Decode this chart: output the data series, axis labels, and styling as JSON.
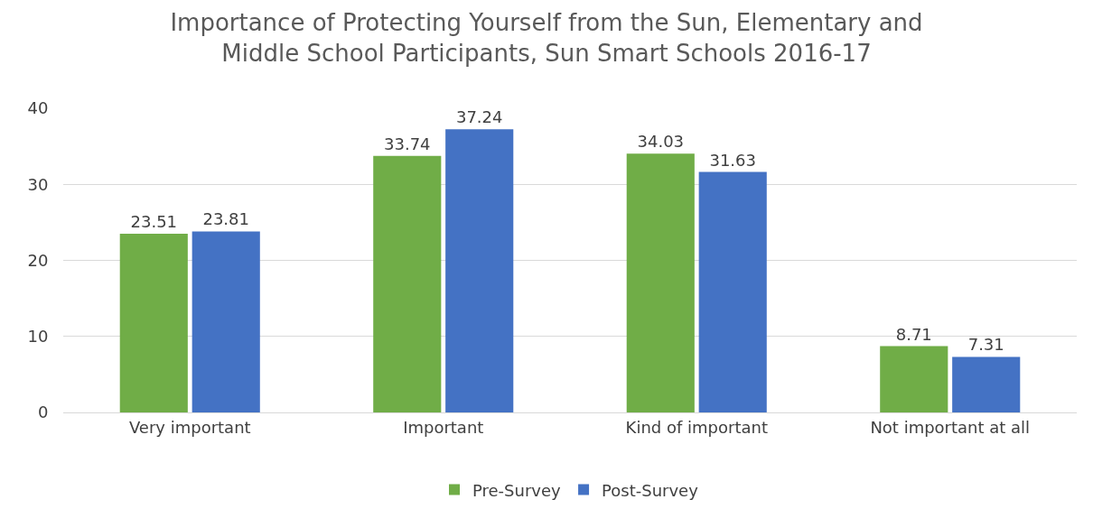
{
  "chart_data": {
    "type": "bar",
    "title": "Importance of Protecting Yourself from the Sun, Elementary and Middle School Participants, Sun Smart Schools 2016-17",
    "categories": [
      "Very important",
      "Important",
      "Kind of important",
      "Not important at all"
    ],
    "series": [
      {
        "name": "Pre-Survey",
        "color": "#70ad47",
        "values": [
          23.51,
          33.74,
          34.03,
          8.71
        ]
      },
      {
        "name": "Post-Survey",
        "color": "#4472c4",
        "values": [
          23.81,
          37.24,
          31.63,
          7.31
        ]
      }
    ],
    "ylim": [
      0,
      40
    ],
    "yticks": [
      0,
      10,
      20,
      30,
      40
    ],
    "grid": "y",
    "legend": "bottom",
    "data_labels": true
  }
}
